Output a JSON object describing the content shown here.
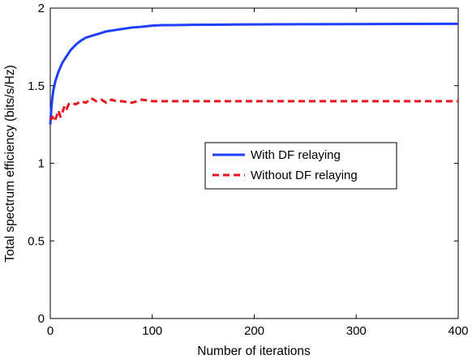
{
  "chart_data": {
    "type": "line",
    "title": "",
    "xlabel": "Number of iterations",
    "ylabel": "Total spectrum efficiency (bits/s/Hz)",
    "xlim": [
      0,
      400
    ],
    "ylim": [
      0,
      2
    ],
    "xticks": [
      0,
      100,
      200,
      300,
      400
    ],
    "yticks": [
      0,
      0.5,
      1,
      1.5,
      2
    ],
    "xtick_labels": [
      "0",
      "100",
      "200",
      "300",
      "400"
    ],
    "ytick_labels": [
      "0",
      "0.5",
      "1",
      "1.5",
      "2"
    ],
    "grid": false,
    "legend_position": "center-right",
    "series": [
      {
        "name": "With DF relaying",
        "color": "#1f3fff",
        "line_style": "solid",
        "x": [
          0,
          1,
          2,
          3,
          4,
          5,
          6,
          7,
          8,
          10,
          12,
          14,
          16,
          18,
          20,
          23,
          26,
          30,
          35,
          40,
          45,
          50,
          55,
          60,
          65,
          70,
          80,
          90,
          100,
          110,
          120,
          140,
          160,
          180,
          200,
          250,
          300,
          350,
          400
        ],
        "values": [
          1.25,
          1.35,
          1.42,
          1.47,
          1.5,
          1.53,
          1.55,
          1.57,
          1.59,
          1.62,
          1.65,
          1.67,
          1.69,
          1.71,
          1.73,
          1.75,
          1.77,
          1.79,
          1.81,
          1.82,
          1.83,
          1.84,
          1.85,
          1.855,
          1.86,
          1.865,
          1.875,
          1.88,
          1.887,
          1.89,
          1.89,
          1.892,
          1.893,
          1.894,
          1.895,
          1.896,
          1.897,
          1.898,
          1.899
        ]
      },
      {
        "name": "Without DF relaying",
        "color": "#e8141e",
        "line_style": "dashed",
        "x": [
          0,
          2,
          4,
          6,
          8,
          10,
          12,
          14,
          16,
          18,
          20,
          25,
          30,
          35,
          40,
          45,
          50,
          55,
          60,
          65,
          70,
          80,
          90,
          100,
          120,
          150,
          200,
          250,
          300,
          350,
          400
        ],
        "values": [
          1.28,
          1.3,
          1.27,
          1.3,
          1.34,
          1.3,
          1.33,
          1.37,
          1.35,
          1.38,
          1.39,
          1.38,
          1.4,
          1.39,
          1.42,
          1.4,
          1.41,
          1.39,
          1.41,
          1.4,
          1.4,
          1.39,
          1.41,
          1.4,
          1.4,
          1.4,
          1.4,
          1.4,
          1.4,
          1.4,
          1.4
        ]
      }
    ]
  }
}
